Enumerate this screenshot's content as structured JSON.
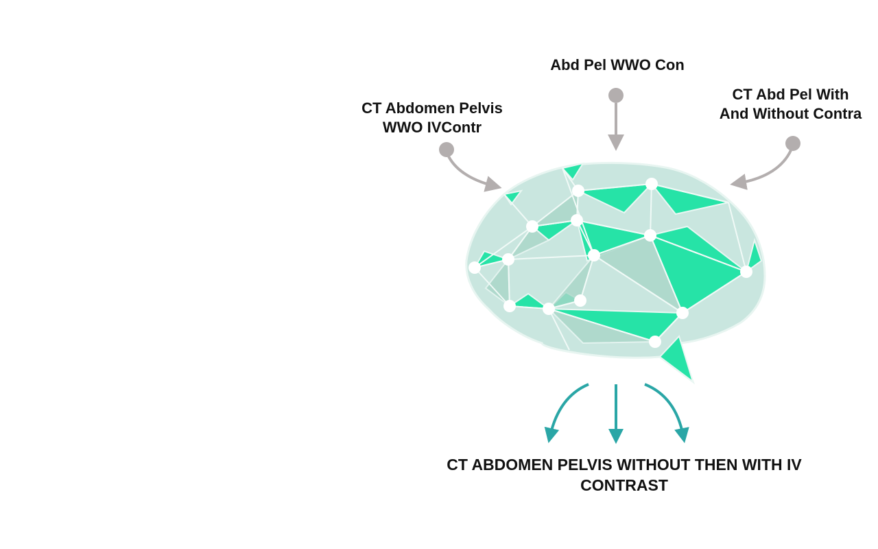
{
  "inputs": {
    "left": {
      "line1": "CT Abdomen Pelvis",
      "line2": "WWO IVContr"
    },
    "top": {
      "line1": "Abd Pel WWO Con"
    },
    "right": {
      "line1": "CT Abd Pel With",
      "line2": "And Without Contra"
    }
  },
  "output": {
    "line1": "CT ABDOMEN PELVIS WITHOUT THEN WITH IV",
    "line2": "CONTRAST"
  },
  "colors": {
    "input_arrow": "#b3aeae",
    "output_arrow": "#2aa6a6",
    "brain_bright": "#26e3a7",
    "brain_pale": "#c9e6df",
    "brain_mid": "#a9d6c8",
    "node": "#ffffff",
    "text": "#111111"
  },
  "icons": {
    "center": "brain-network-icon"
  }
}
